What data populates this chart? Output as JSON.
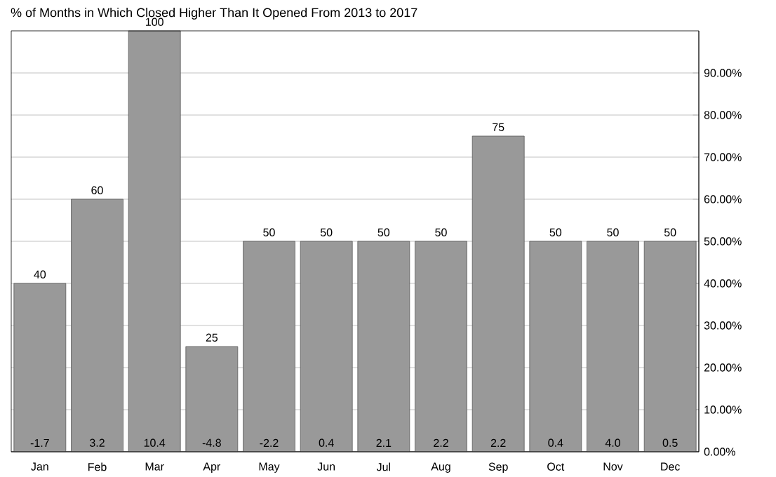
{
  "chart_data": {
    "type": "bar",
    "title": "% of Months in Which Closed Higher Than It Opened From 2013 to 2017",
    "categories": [
      "Jan",
      "Feb",
      "Mar",
      "Apr",
      "May",
      "Jun",
      "Jul",
      "Aug",
      "Sep",
      "Oct",
      "Nov",
      "Dec"
    ],
    "values": [
      40,
      60,
      100,
      25,
      50,
      50,
      50,
      50,
      75,
      50,
      50,
      50
    ],
    "color": "#999999",
    "data_labels": true,
    "ylim": [
      0,
      100
    ],
    "yticks": [
      {
        "value": 0,
        "label": "0.00%"
      },
      {
        "value": 10,
        "label": "10.00%"
      },
      {
        "value": 20,
        "label": "20.00%"
      },
      {
        "value": 30,
        "label": "30.00%"
      },
      {
        "value": 40,
        "label": "40.00%"
      },
      {
        "value": 50,
        "label": "50.00%"
      },
      {
        "value": 60,
        "label": "60.00%"
      },
      {
        "value": 70,
        "label": "70.00%"
      },
      {
        "value": 80,
        "label": "80.00%"
      },
      {
        "value": 90,
        "label": "90.00%"
      }
    ],
    "grid": "y",
    "annotations": [
      {
        "text": "-1.7",
        "x": "Jan",
        "y": 0
      },
      {
        "text": "3.2",
        "x": "Feb",
        "y": 0
      },
      {
        "text": "10.4",
        "x": "Mar",
        "y": 0
      },
      {
        "text": "-4.8",
        "x": "Apr",
        "y": 0
      },
      {
        "text": "-2.2",
        "x": "May",
        "y": 0
      },
      {
        "text": "0.4",
        "x": "Jun",
        "y": 0
      },
      {
        "text": "2.1",
        "x": "Jul",
        "y": 0
      },
      {
        "text": "2.2",
        "x": "Aug",
        "y": 0
      },
      {
        "text": "2.2",
        "x": "Sep",
        "y": 0
      },
      {
        "text": "0.4",
        "x": "Oct",
        "y": 0
      },
      {
        "text": "4.0",
        "x": "Nov",
        "y": 0
      },
      {
        "text": "0.5",
        "x": "Dec",
        "y": 0
      }
    ]
  }
}
